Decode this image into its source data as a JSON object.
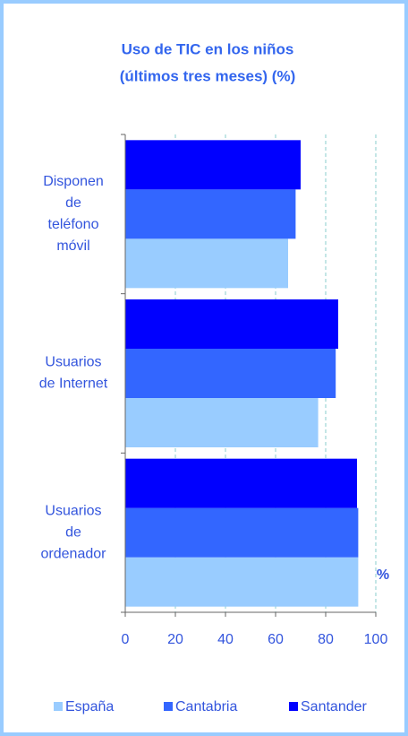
{
  "chart_data": {
    "type": "hbar",
    "title": [
      "Uso de TIC en los niños",
      "(últimos tres meses) (%)"
    ],
    "x_label": "%",
    "categories": [
      [
        "Disponen",
        "de",
        "teléfono",
        "móvil"
      ],
      [
        "Usuarios",
        "de Internet"
      ],
      [
        "Usuarios",
        "de",
        "ordenador"
      ]
    ],
    "series": [
      {
        "name": "España",
        "color": "#99ccff",
        "values": [
          65,
          77,
          93
        ]
      },
      {
        "name": "Cantabria",
        "color": "#3366ff",
        "values": [
          68,
          84,
          93
        ]
      },
      {
        "name": "Santander",
        "color": "#0000ff",
        "values": [
          70,
          85,
          92.5
        ]
      }
    ],
    "xlim": [
      0,
      100
    ],
    "xticks": [
      0,
      20,
      40,
      60,
      80,
      100
    ],
    "grid": true,
    "legend": "bottom"
  }
}
